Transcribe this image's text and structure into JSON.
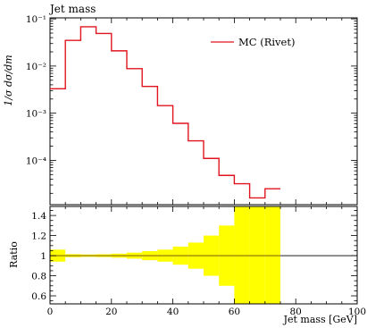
{
  "chart_data": {
    "type": "line",
    "title": "Jet mass",
    "xlabel": "Jet mass [GeV]",
    "ylabel": "1/σ dσ/dm",
    "ratio_label": "Ratio",
    "x_ticks": [
      "0",
      "20",
      "40",
      "60",
      "80",
      "100"
    ],
    "y_ticks": [
      "10⁻⁴",
      "10⁻³",
      "10⁻²",
      "10⁻¹"
    ],
    "ratio_ticks": [
      "0.6",
      "0.8",
      "1",
      "1.2",
      "1.4"
    ],
    "xlim": [
      0,
      100
    ],
    "ylim": [
      1.15e-05,
      0.105
    ],
    "ratio_ylim": [
      0.52,
      1.49
    ],
    "y_scale": "log",
    "legend_position": "top-right",
    "series": [
      {
        "name": "MC (Rivet)",
        "color": "#e0141e",
        "bin_edges": [
          0,
          5,
          10,
          15,
          20,
          25,
          30,
          35,
          40,
          45,
          50,
          55,
          60,
          65,
          70,
          75
        ],
        "values": [
          0.0033,
          0.035,
          0.068,
          0.049,
          0.021,
          0.0088,
          0.0037,
          0.00145,
          0.00061,
          0.00026,
          0.00011,
          4.8e-05,
          3.2e-05,
          1.6e-05,
          2.5e-05
        ]
      }
    ],
    "ratio": {
      "band_color": "#ffff00",
      "line_color": "#8a6a10",
      "values": [
        1,
        1,
        1,
        1,
        1,
        1,
        1,
        1,
        1,
        1,
        1,
        1,
        1,
        1,
        1
      ],
      "band_halfwidth": [
        0.06,
        0.015,
        0.012,
        0.014,
        0.02,
        0.03,
        0.045,
        0.06,
        0.09,
        0.13,
        0.2,
        0.3,
        0.5,
        0.5,
        0.5
      ]
    }
  }
}
